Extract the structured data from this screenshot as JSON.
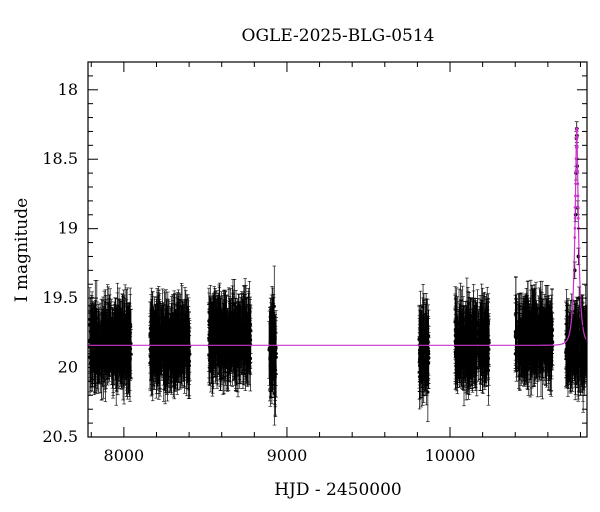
{
  "chart_data": {
    "type": "scatter",
    "title": "OGLE-2025-BLG-0514",
    "xlabel": "HJD - 2450000",
    "ylabel": "I magnitude",
    "xlim": [
      7780,
      10840
    ],
    "ylim": [
      20.5,
      17.8
    ],
    "y_inverted": true,
    "x_ticks": [
      8000,
      9000,
      10000
    ],
    "x_tick_labels": [
      "8000",
      "9000",
      "10000"
    ],
    "y_ticks": [
      18,
      18.5,
      19,
      19.5,
      20,
      20.5
    ],
    "y_tick_labels": [
      "18",
      "18.5",
      "19",
      "19.5",
      "20",
      "20.5"
    ],
    "grid": false,
    "observing_seasons": [
      {
        "start": 7790,
        "end": 8045,
        "mean_mag": 19.83,
        "scatter_mag": 0.15,
        "error_mag": 0.22
      },
      {
        "start": 8160,
        "end": 8405,
        "mean_mag": 19.83,
        "scatter_mag": 0.15,
        "error_mag": 0.22
      },
      {
        "start": 8520,
        "end": 8780,
        "mean_mag": 19.8,
        "scatter_mag": 0.15,
        "error_mag": 0.22
      },
      {
        "start": 8890,
        "end": 8935,
        "mean_mag": 19.85,
        "scatter_mag": 0.2,
        "error_mag": 0.25
      },
      {
        "start": 9810,
        "end": 9870,
        "mean_mag": 19.88,
        "scatter_mag": 0.18,
        "error_mag": 0.22
      },
      {
        "start": 10030,
        "end": 10240,
        "mean_mag": 19.83,
        "scatter_mag": 0.15,
        "error_mag": 0.22
      },
      {
        "start": 10400,
        "end": 10630,
        "mean_mag": 19.8,
        "scatter_mag": 0.15,
        "error_mag": 0.22
      },
      {
        "start": 10710,
        "end": 10840,
        "mean_mag": 19.84,
        "scatter_mag": 0.15,
        "error_mag": 0.22
      }
    ],
    "peak_points": [
      {
        "x": 10765,
        "y": 19.3,
        "err": 0.06
      },
      {
        "x": 10770,
        "y": 18.9,
        "err": 0.05
      },
      {
        "x": 10773,
        "y": 18.6,
        "err": 0.05
      },
      {
        "x": 10775,
        "y": 18.35,
        "err": 0.05
      },
      {
        "x": 10777,
        "y": 18.28,
        "err": 0.05
      },
      {
        "x": 10778,
        "y": 18.33,
        "err": 0.05
      },
      {
        "x": 10780,
        "y": 18.55,
        "err": 0.05
      },
      {
        "x": 10783,
        "y": 18.85,
        "err": 0.05
      },
      {
        "x": 10787,
        "y": 19.2,
        "err": 0.06
      },
      {
        "x": 10792,
        "y": 19.5,
        "err": 0.08
      }
    ],
    "model": {
      "name": "model",
      "baseline_mag": 19.84,
      "peak_mag": 18.28,
      "t0": 10777,
      "tE": 25,
      "color": "#cc33cc"
    },
    "point_color": "#000000"
  }
}
